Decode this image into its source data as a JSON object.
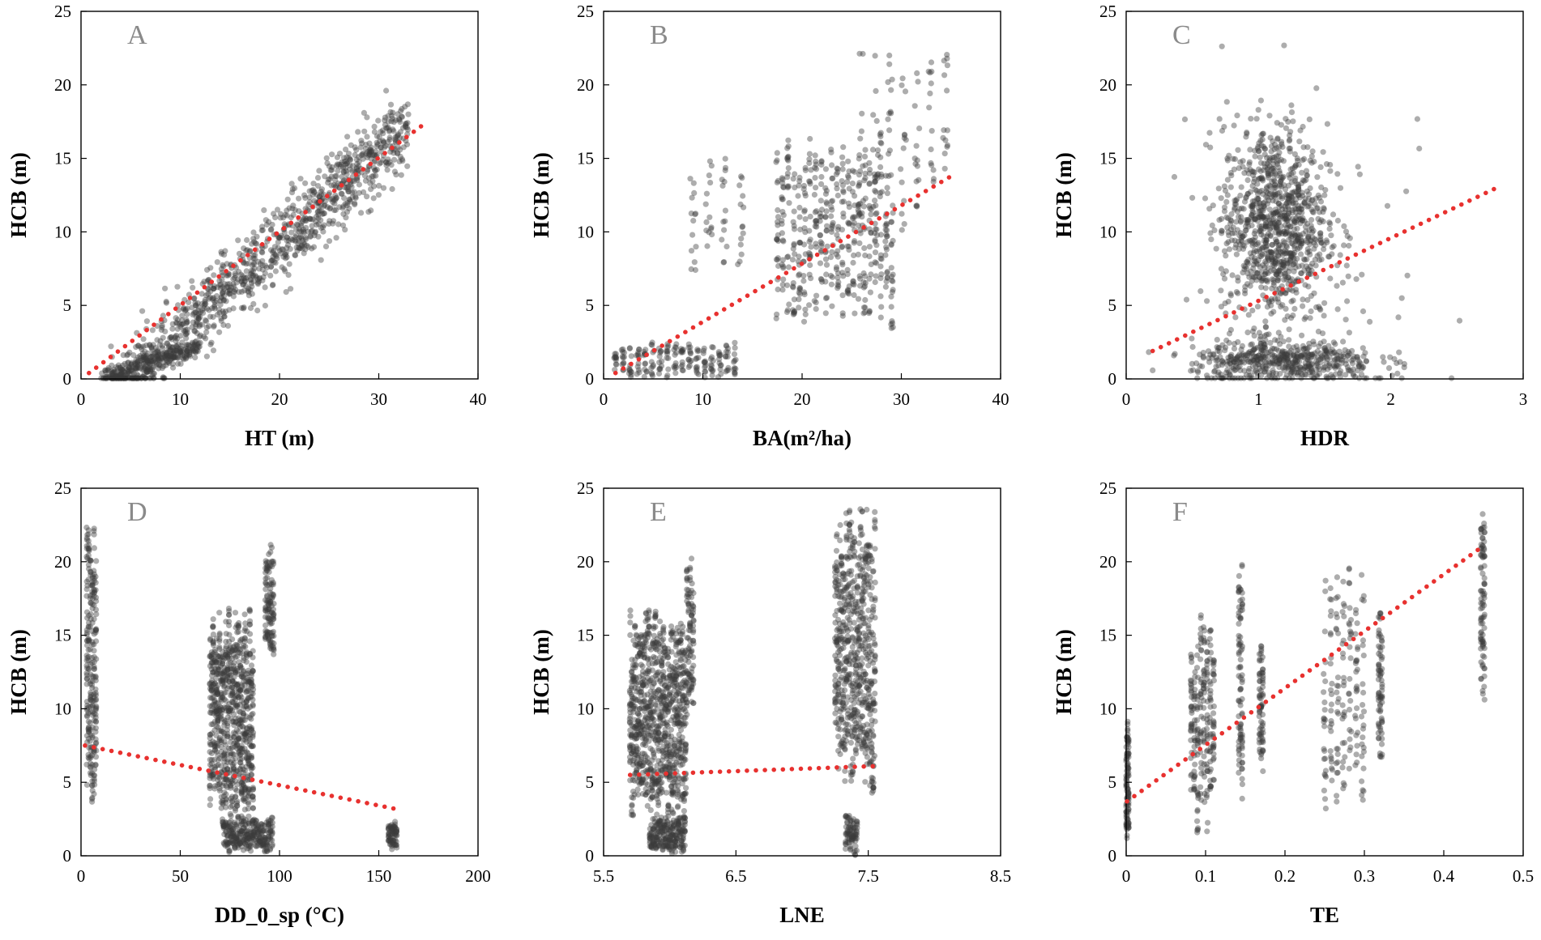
{
  "figure": {
    "description_free": true
  },
  "colors": {
    "points": "#3c3c3c",
    "trendline": "#e8312f",
    "panel_letter": "#8a8a8a"
  },
  "chart_data": [
    {
      "type": "scatter",
      "letter": "A",
      "xlabel": "HT (m)",
      "ylabel": "HCB (m)",
      "xlim": [
        0,
        40
      ],
      "ylim": [
        0,
        25
      ],
      "xticks": [
        "0",
        "10",
        "20",
        "30",
        "40"
      ],
      "xtick_values": [
        0,
        10,
        20,
        30,
        40
      ],
      "yticks": [
        "0",
        "5",
        "10",
        "15",
        "20",
        "25"
      ],
      "ytick_values": [
        0,
        5,
        10,
        15,
        20,
        25
      ],
      "trendline": {
        "x": [
          0.8,
          34.5
        ],
        "y": [
          0.4,
          17.3
        ]
      },
      "clusters": [
        {
          "kind": "line",
          "x_from": 3,
          "x_to": 33,
          "slope": 0.62,
          "intercept": -3.2,
          "spread": 2.6,
          "n": 1100
        },
        {
          "kind": "line",
          "x_from": 2,
          "x_to": 12,
          "slope": 0.22,
          "intercept": -0.4,
          "spread": 0.6,
          "n": 220
        }
      ]
    },
    {
      "type": "scatter",
      "letter": "B",
      "xlabel": "BA(m²/ha)",
      "ylabel": "HCB (m)",
      "xlim": [
        0,
        40
      ],
      "ylim": [
        0,
        25
      ],
      "xticks": [
        "0",
        "10",
        "20",
        "30",
        "40"
      ],
      "xtick_values": [
        0,
        10,
        20,
        30,
        40
      ],
      "yticks": [
        "0",
        "5",
        "10",
        "15",
        "20",
        "25"
      ],
      "ytick_values": [
        0,
        5,
        10,
        15,
        20,
        25
      ],
      "trendline": {
        "x": [
          1.2,
          35.3
        ],
        "y": [
          0.4,
          13.9
        ]
      },
      "clusters": [
        {
          "kind": "columns",
          "x_from": 1.2,
          "x_to": 13.5,
          "step": 0.75,
          "y_from": 0,
          "y_to": 2.6,
          "n": 12
        },
        {
          "kind": "columns",
          "x_from": 9.0,
          "x_to": 13.8,
          "step": 1.6,
          "y_from": 7,
          "y_to": 15.5,
          "n": 14
        },
        {
          "kind": "columns",
          "x_from": 17.5,
          "x_to": 29.5,
          "step": 0.55,
          "y_from": 3,
          "y_to": 17,
          "n": 22
        },
        {
          "kind": "columns",
          "x_from": 26,
          "x_to": 35.5,
          "step": 1.4,
          "y_from": 9,
          "y_to": 23,
          "n": 14
        }
      ]
    },
    {
      "type": "scatter",
      "letter": "C",
      "xlabel": "HDR",
      "ylabel": "HCB (m)",
      "xlim": [
        0,
        3
      ],
      "ylim": [
        0,
        25
      ],
      "xticks": [
        "0",
        "1",
        "2",
        "3"
      ],
      "xtick_values": [
        0,
        1,
        2,
        3
      ],
      "yticks": [
        "0",
        "5",
        "10",
        "15",
        "20",
        "25"
      ],
      "ytick_values": [
        0,
        5,
        10,
        15,
        20,
        25
      ],
      "trendline": {
        "x": [
          0.2,
          2.8
        ],
        "y": [
          1.9,
          13.0
        ]
      },
      "clusters": [
        {
          "kind": "blob",
          "cx": 1.12,
          "cy": 10.5,
          "sx": 0.2,
          "sy": 3.4,
          "n": 1000
        },
        {
          "kind": "blob",
          "cx": 1.2,
          "cy": 1.2,
          "sx": 0.35,
          "sy": 0.7,
          "n": 500
        },
        {
          "kind": "blob",
          "cx": 1.4,
          "cy": 6,
          "sx": 0.6,
          "sy": 6,
          "n": 60
        }
      ]
    },
    {
      "type": "scatter",
      "letter": "D",
      "xlabel": "DD_0_sp (°C)",
      "ylabel": "HCB (m)",
      "xlim": [
        0,
        200
      ],
      "ylim": [
        0,
        25
      ],
      "xticks": [
        "0",
        "50",
        "100",
        "150",
        "200"
      ],
      "xtick_values": [
        0,
        50,
        100,
        150,
        200
      ],
      "yticks": [
        "0",
        "5",
        "10",
        "15",
        "20",
        "25"
      ],
      "ytick_values": [
        0,
        5,
        10,
        15,
        20,
        25
      ],
      "trendline": {
        "x": [
          2,
          158
        ],
        "y": [
          7.5,
          3.2
        ]
      },
      "clusters": [
        {
          "kind": "columns",
          "x_from": 3,
          "x_to": 8,
          "step": 0.9,
          "y_from": 3,
          "y_to": 24,
          "n": 40
        },
        {
          "kind": "columns",
          "x_from": 65,
          "x_to": 87,
          "step": 0.8,
          "y_from": 2,
          "y_to": 17,
          "n": 28
        },
        {
          "kind": "columns",
          "x_from": 93,
          "x_to": 97,
          "step": 0.8,
          "y_from": 13,
          "y_to": 21.5,
          "n": 20
        },
        {
          "kind": "columns",
          "x_from": 72,
          "x_to": 97,
          "step": 0.9,
          "y_from": 0,
          "y_to": 2.8,
          "n": 10
        },
        {
          "kind": "columns",
          "x_from": 155,
          "x_to": 159,
          "step": 0.8,
          "y_from": 0.4,
          "y_to": 2.4,
          "n": 12
        }
      ]
    },
    {
      "type": "scatter",
      "letter": "E",
      "xlabel": "LNE",
      "ylabel": "HCB (m)",
      "xlim": [
        5.5,
        8.5
      ],
      "ylim": [
        0,
        25
      ],
      "xticks": [
        "5.5",
        "6.5",
        "7.5",
        "8.5"
      ],
      "xtick_values": [
        5.5,
        6.5,
        7.5,
        8.5
      ],
      "yticks": [
        "0",
        "5",
        "10",
        "15",
        "20",
        "25"
      ],
      "ytick_values": [
        0,
        5,
        10,
        15,
        20,
        25
      ],
      "trendline": {
        "x": [
          5.7,
          7.55
        ],
        "y": [
          5.5,
          6.1
        ]
      },
      "clusters": [
        {
          "kind": "columns",
          "x_from": 5.7,
          "x_to": 6.12,
          "step": 0.012,
          "y_from": 2,
          "y_to": 17,
          "n": 25
        },
        {
          "kind": "columns",
          "x_from": 5.85,
          "x_to": 6.12,
          "step": 0.012,
          "y_from": 0,
          "y_to": 2.8,
          "n": 10
        },
        {
          "kind": "columns",
          "x_from": 6.13,
          "x_to": 6.18,
          "step": 0.012,
          "y_from": 8,
          "y_to": 21.5,
          "n": 20
        },
        {
          "kind": "columns",
          "x_from": 7.25,
          "x_to": 7.55,
          "step": 0.012,
          "y_from": 4,
          "y_to": 24,
          "n": 25
        },
        {
          "kind": "columns",
          "x_from": 7.33,
          "x_to": 7.42,
          "step": 0.012,
          "y_from": 0,
          "y_to": 3,
          "n": 10
        }
      ]
    },
    {
      "type": "scatter",
      "letter": "F",
      "xlabel": "TE",
      "ylabel": "HCB (m)",
      "xlim": [
        0,
        0.5
      ],
      "ylim": [
        0,
        25
      ],
      "xticks": [
        "0",
        "0.1",
        "0.2",
        "0.3",
        "0.4",
        "0.5"
      ],
      "xtick_values": [
        0,
        0.1,
        0.2,
        0.3,
        0.4,
        0.5
      ],
      "yticks": [
        "0",
        "5",
        "10",
        "15",
        "20",
        "25"
      ],
      "ytick_values": [
        0,
        5,
        10,
        15,
        20,
        25
      ],
      "trendline": {
        "x": [
          0.001,
          0.448
        ],
        "y": [
          3.7,
          21.0
        ]
      },
      "clusters": [
        {
          "kind": "columns",
          "x_from": 0.0,
          "x_to": 0.003,
          "step": 0.001,
          "y_from": 0,
          "y_to": 10.5,
          "n": 30
        },
        {
          "kind": "columns",
          "x_from": 0.082,
          "x_to": 0.11,
          "step": 0.004,
          "y_from": 1,
          "y_to": 17,
          "n": 30
        },
        {
          "kind": "columns",
          "x_from": 0.142,
          "x_to": 0.146,
          "step": 0.002,
          "y_from": 3.3,
          "y_to": 21.7,
          "n": 30
        },
        {
          "kind": "columns",
          "x_from": 0.168,
          "x_to": 0.172,
          "step": 0.002,
          "y_from": 5,
          "y_to": 16.3,
          "n": 25
        },
        {
          "kind": "columns",
          "x_from": 0.25,
          "x_to": 0.3,
          "step": 0.008,
          "y_from": 2.7,
          "y_to": 20.8,
          "n": 25
        },
        {
          "kind": "columns",
          "x_from": 0.318,
          "x_to": 0.322,
          "step": 0.002,
          "y_from": 5.3,
          "y_to": 17.7,
          "n": 25
        },
        {
          "kind": "columns",
          "x_from": 0.447,
          "x_to": 0.451,
          "step": 0.002,
          "y_from": 9.3,
          "y_to": 24.1,
          "n": 30
        }
      ]
    }
  ]
}
